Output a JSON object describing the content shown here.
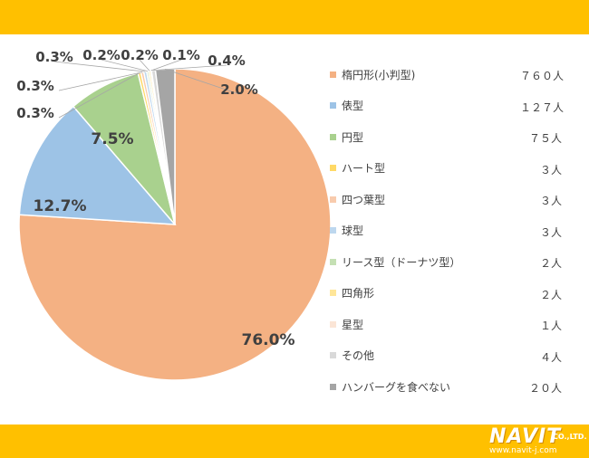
{
  "chart_data": {
    "type": "pie",
    "title": "",
    "slices": [
      {
        "label": "楕円形(小判型)",
        "count": "７６０人",
        "value": 76.0,
        "pct_label": "76.0%",
        "color": "#F4B183"
      },
      {
        "label": "俵型",
        "count": "１２７人",
        "value": 12.7,
        "pct_label": "12.7%",
        "color": "#9DC3E6"
      },
      {
        "label": "円型",
        "count": "７５人",
        "value": 7.5,
        "pct_label": "7.5%",
        "color": "#A9D18E"
      },
      {
        "label": "ハート型",
        "count": "３人",
        "value": 0.3,
        "pct_label": "0.3%",
        "color": "#FFD966"
      },
      {
        "label": "四つ葉型",
        "count": "３人",
        "value": 0.3,
        "pct_label": "0.3%",
        "color": "#F8CBAD"
      },
      {
        "label": "球型",
        "count": "３人",
        "value": 0.3,
        "pct_label": "0.3%",
        "color": "#BDD7EE"
      },
      {
        "label": "リース型（ドーナツ型）",
        "count": "２人",
        "value": 0.2,
        "pct_label": "0.2%",
        "color": "#C5E0B4"
      },
      {
        "label": "四角形",
        "count": "２人",
        "value": 0.2,
        "pct_label": "0.2%",
        "color": "#FFE699"
      },
      {
        "label": "星型",
        "count": "１人",
        "value": 0.1,
        "pct_label": "0.1%",
        "color": "#FBE5D6"
      },
      {
        "label": "その他",
        "count": "４人",
        "value": 0.4,
        "pct_label": "0.4%",
        "color": "#D9D9D9"
      },
      {
        "label": "ハンバーグを食べない",
        "count": "２０人",
        "value": 2.0,
        "pct_label": "2.0%",
        "color": "#A5A5A5"
      }
    ]
  },
  "brand": {
    "logo": "NAVIT",
    "suffix": "CO.,LTD.",
    "url": "www.navit-j.com"
  }
}
